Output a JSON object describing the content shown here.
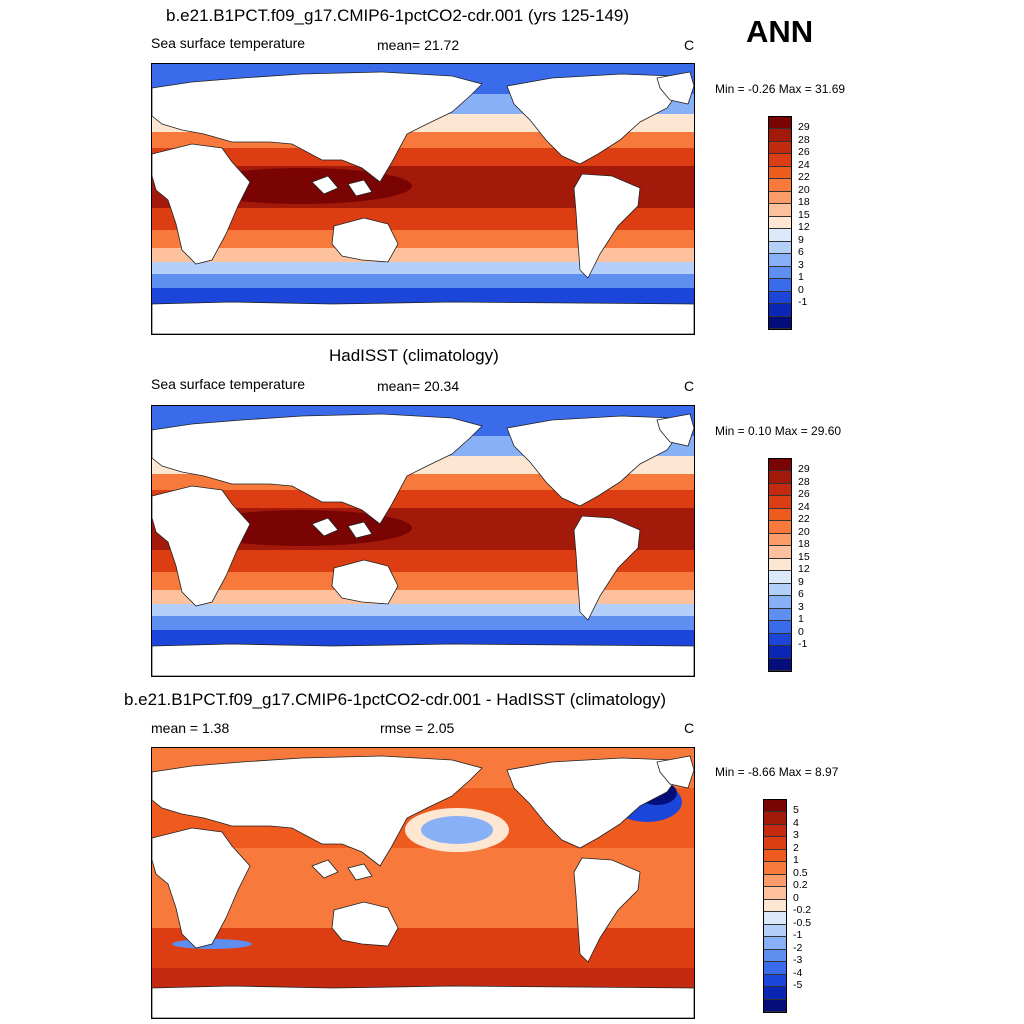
{
  "season": "ANN",
  "panels": [
    {
      "title": "b.e21.B1PCT.f09_g17.CMIP6-1pctCO2-cdr.001 (yrs 125-149)",
      "left_label": "Sea surface temperature",
      "center_label": "mean=  21.72",
      "units": "C",
      "minmax": "Min =  -0.26 Max =  31.69"
    },
    {
      "title": "HadISST (climatology)",
      "left_label": "Sea surface temperature",
      "center_label": "mean=  20.34",
      "units": "C",
      "minmax": "Min =   0.10 Max =  29.60"
    },
    {
      "title": "b.e21.B1PCT.f09_g17.CMIP6-1pctCO2-cdr.001 - HadISST (climatology)",
      "left_label": "mean =   1.38",
      "center_label": "rmse =   2.05",
      "units": "C",
      "minmax": "Min =  -8.66 Max =   8.97"
    }
  ],
  "colorbars": {
    "sst": {
      "labels": [
        "29",
        "28",
        "26",
        "24",
        "22",
        "20",
        "18",
        "15",
        "12",
        "9",
        "6",
        "3",
        "1",
        "0",
        "-1"
      ],
      "colors": [
        "#7a0403",
        "#a31a0b",
        "#c42a10",
        "#dd3d12",
        "#ef5a1f",
        "#f7793b",
        "#fb9c6a",
        "#fdc19d",
        "#fde6d2",
        "#dbe9fb",
        "#b3cffa",
        "#88b0f7",
        "#5f8ef1",
        "#3a6bea",
        "#1b46d9",
        "#0b25b5",
        "#030e7a"
      ]
    },
    "diff": {
      "labels": [
        "5",
        "4",
        "3",
        "2",
        "1",
        "0.5",
        "0.2",
        "0",
        "-0.2",
        "-0.5",
        "-1",
        "-2",
        "-3",
        "-4",
        "-5"
      ],
      "colors": [
        "#7a0403",
        "#a31a0b",
        "#c42a10",
        "#dd3d12",
        "#ef5a1f",
        "#f7793b",
        "#fb9c6a",
        "#fdc19d",
        "#fde6d2",
        "#dbe9fb",
        "#b3cffa",
        "#88b0f7",
        "#5f8ef1",
        "#3a6bea",
        "#1b46d9",
        "#0b25b5",
        "#030e7a"
      ]
    }
  },
  "chart_data": [
    {
      "type": "heatmap",
      "title": "b.e21.B1PCT.f09_g17.CMIP6-1pctCO2-cdr.001 (yrs 125-149)",
      "variable": "Sea surface temperature",
      "units": "C",
      "mean": 21.72,
      "min": -0.26,
      "max": 31.69,
      "contour_levels": [
        -1,
        0,
        1,
        3,
        6,
        9,
        12,
        15,
        18,
        20,
        22,
        24,
        26,
        28,
        29
      ]
    },
    {
      "type": "heatmap",
      "title": "HadISST (climatology)",
      "variable": "Sea surface temperature",
      "units": "C",
      "mean": 20.34,
      "min": 0.1,
      "max": 29.6,
      "contour_levels": [
        -1,
        0,
        1,
        3,
        6,
        9,
        12,
        15,
        18,
        20,
        22,
        24,
        26,
        28,
        29
      ]
    },
    {
      "type": "heatmap",
      "title": "b.e21.B1PCT.f09_g17.CMIP6-1pctCO2-cdr.001 - HadISST (climatology)",
      "units": "C",
      "mean": 1.38,
      "rmse": 2.05,
      "min": -8.66,
      "max": 8.97,
      "contour_levels": [
        -5,
        -4,
        -3,
        -2,
        -1,
        -0.5,
        -0.2,
        0,
        0.2,
        0.5,
        1,
        2,
        3,
        4,
        5
      ]
    }
  ]
}
